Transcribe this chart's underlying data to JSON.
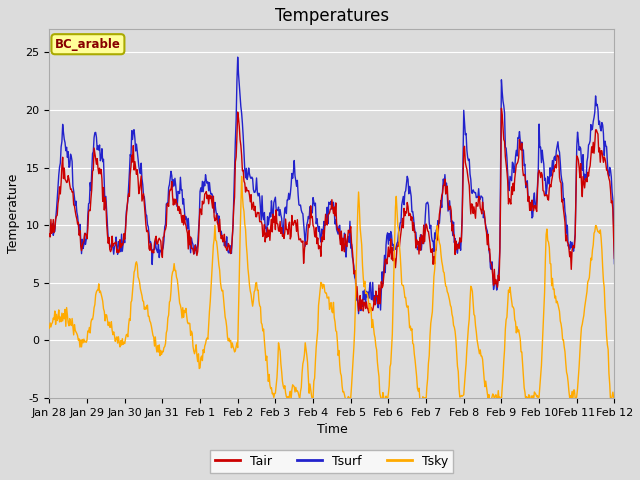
{
  "title": "Temperatures",
  "xlabel": "Time",
  "ylabel": "Temperature",
  "annotation": "BC_arable",
  "ylim": [
    -5,
    27
  ],
  "background_color": "#dcdcdc",
  "plot_bg_color": "#dcdcdc",
  "tair_color": "#cc0000",
  "tsurf_color": "#2222cc",
  "tsky_color": "#ffaa00",
  "legend_entries": [
    "Tair",
    "Tsurf",
    "Tsky"
  ],
  "xtick_labels": [
    "Jan 28",
    "Jan 29",
    "Jan 30",
    "Jan 31",
    "Feb 1",
    "Feb 2",
    "Feb 3",
    "Feb 4",
    "Feb 5",
    "Feb 6",
    "Feb 7",
    "Feb 8",
    "Feb 9",
    "Feb 10",
    "Feb 11",
    "Feb 12"
  ],
  "xtick_positions": [
    0,
    1,
    2,
    3,
    4,
    5,
    6,
    7,
    8,
    9,
    10,
    11,
    12,
    13,
    14,
    15
  ],
  "ytick_positions": [
    -5,
    0,
    5,
    10,
    15,
    20,
    25
  ],
  "grid_color": "#c8c8c8",
  "annotation_bg": "#ffff99",
  "annotation_border": "#aaaa00",
  "annotation_text_color": "#880000",
  "title_fontsize": 12,
  "axis_label_fontsize": 9,
  "tick_fontsize": 8
}
